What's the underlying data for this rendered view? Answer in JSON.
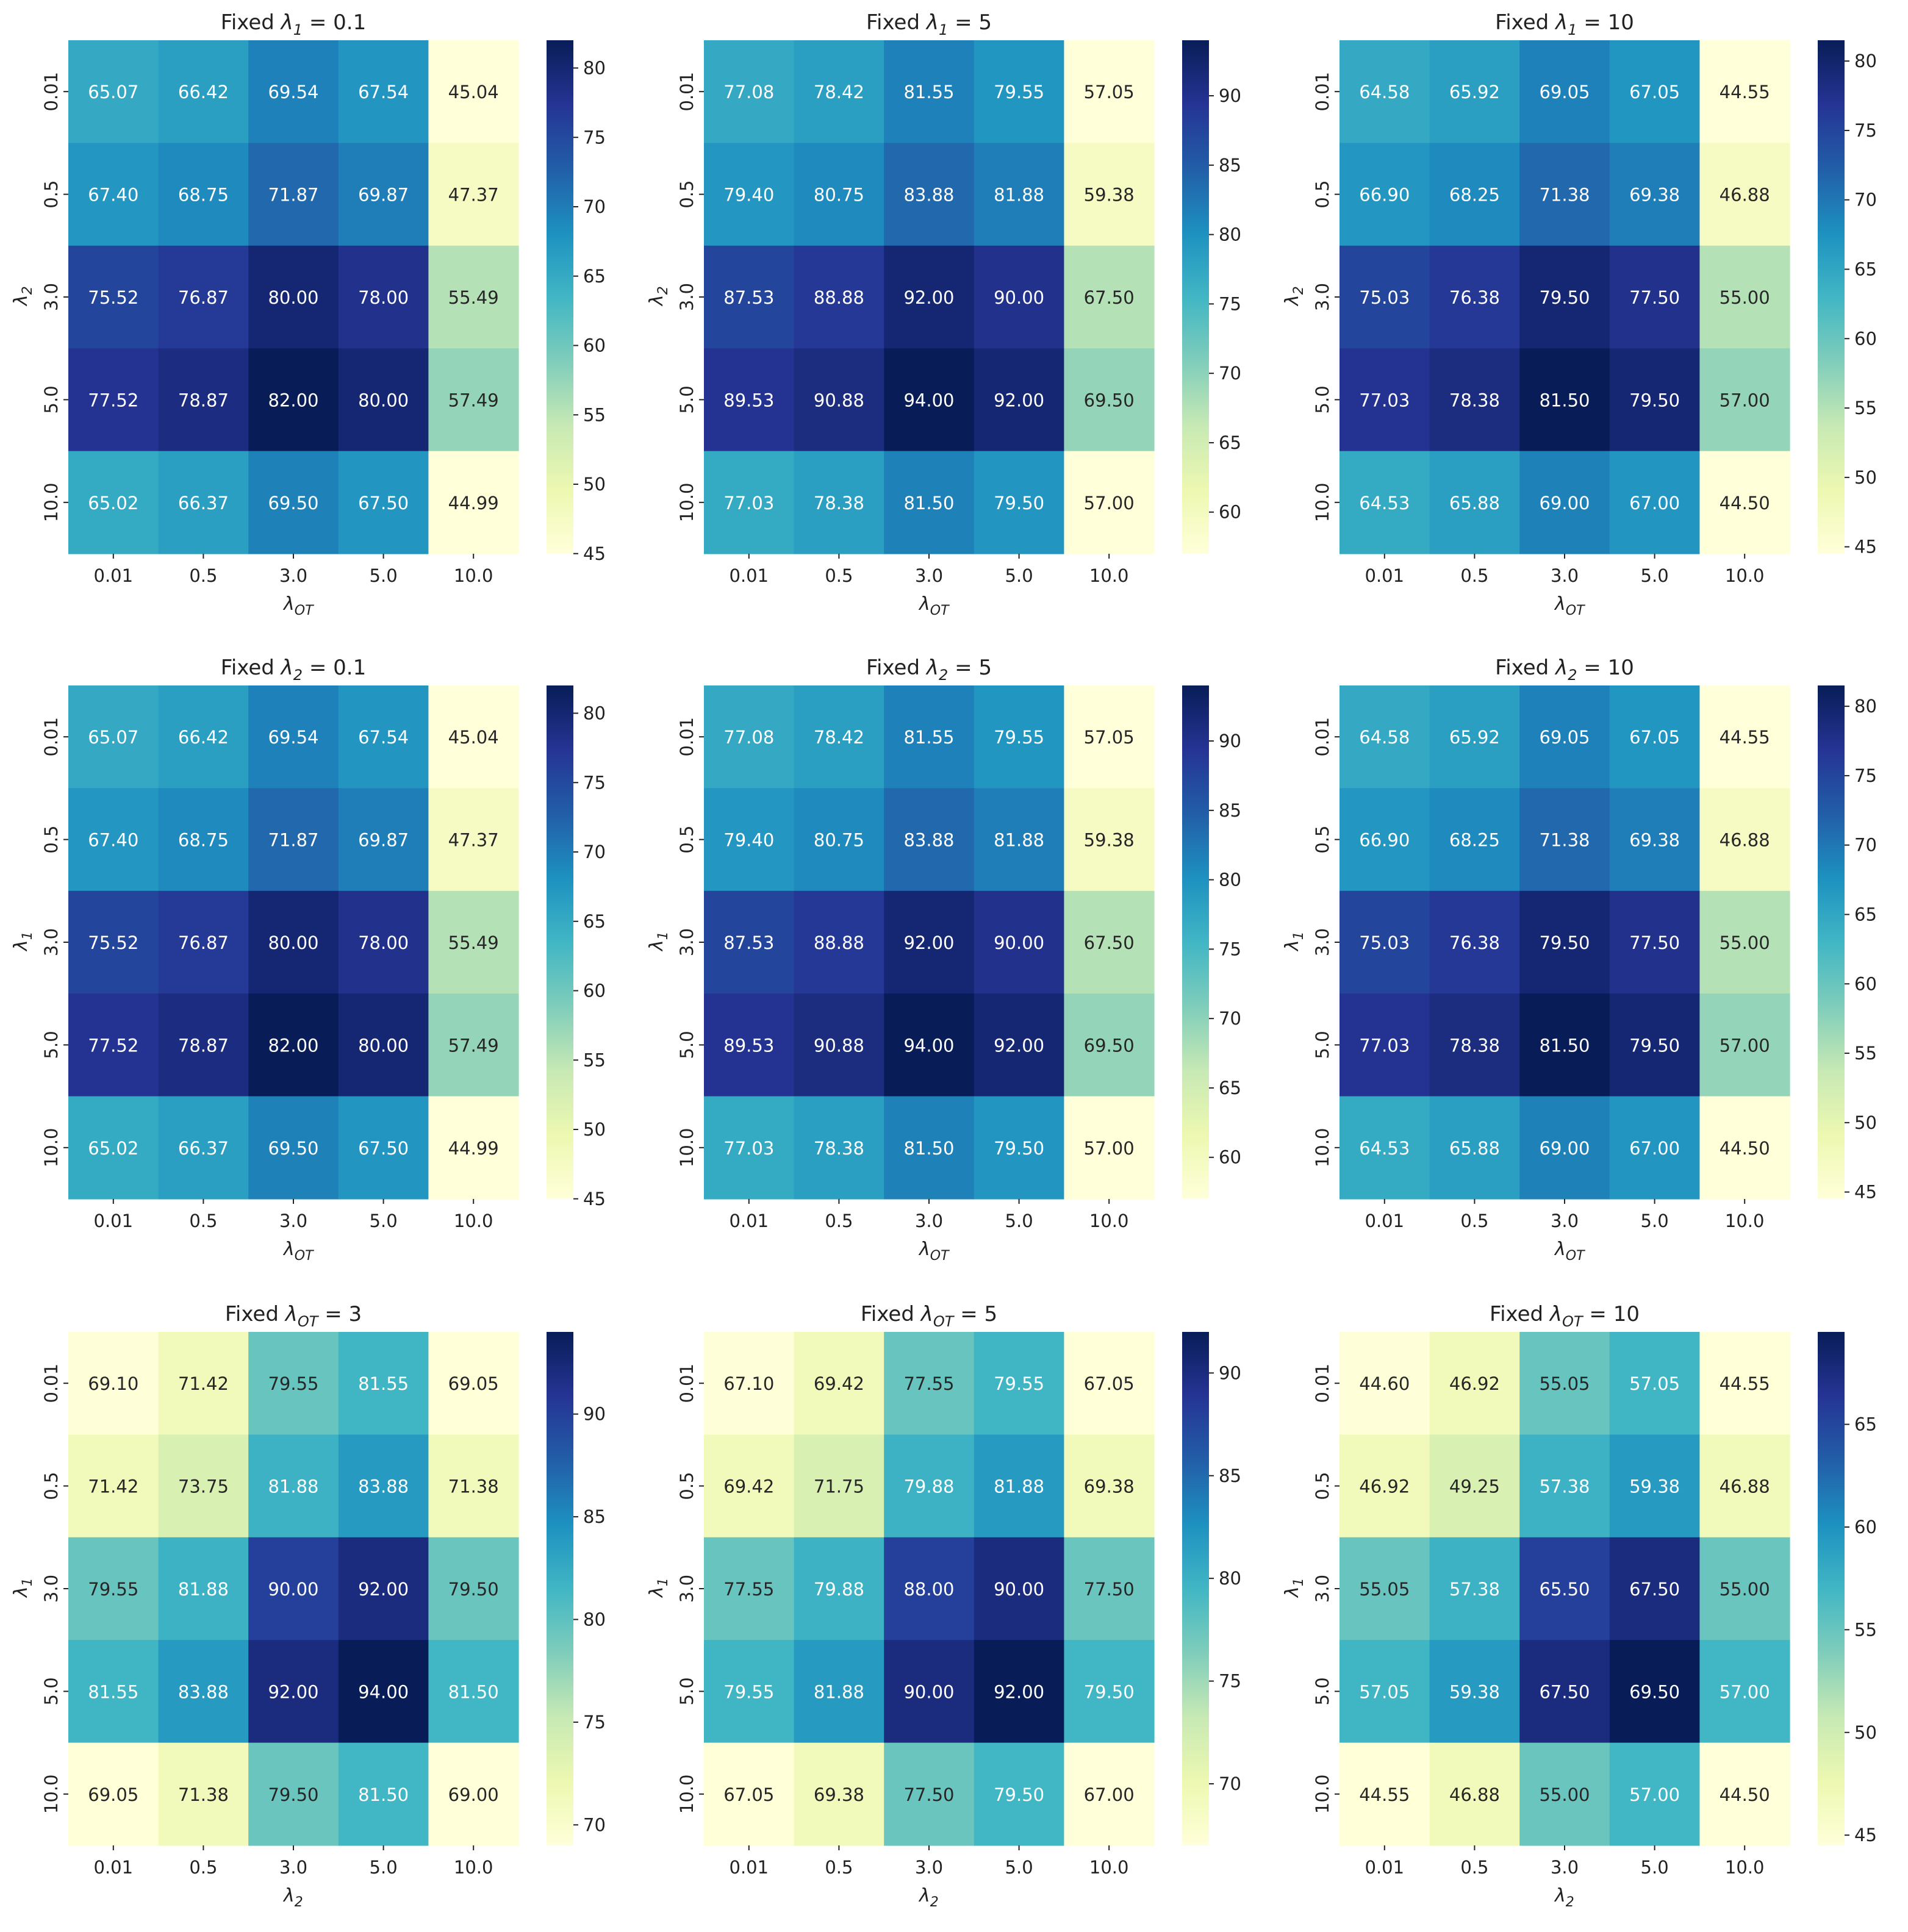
{
  "chart_data": [
    {
      "type": "heatmap",
      "title_prefix": "Fixed ",
      "title_sym": "λ",
      "title_sub": "1",
      "title_value": " = 0.1",
      "xlabel_sym": "λ",
      "xlabel_sub": "OT",
      "ylabel_sym": "λ",
      "ylabel_sub": "2",
      "x_categories": [
        "0.01",
        "0.5",
        "3.0",
        "5.0",
        "10.0"
      ],
      "y_categories": [
        "0.01",
        "0.5",
        "3.0",
        "5.0",
        "10.0"
      ],
      "values": [
        [
          65.07,
          66.42,
          69.54,
          67.54,
          45.04
        ],
        [
          67.4,
          68.75,
          71.87,
          69.87,
          47.37
        ],
        [
          75.52,
          76.87,
          80.0,
          78.0,
          55.49
        ],
        [
          77.52,
          78.87,
          82.0,
          80.0,
          57.49
        ],
        [
          65.02,
          66.37,
          69.5,
          67.5,
          44.99
        ]
      ],
      "colorbar": {
        "vmin": 44.99,
        "vmax": 82.0,
        "ticks": [
          "45",
          "50",
          "55",
          "60",
          "65",
          "70",
          "75",
          "80"
        ]
      }
    },
    {
      "type": "heatmap",
      "title_prefix": "Fixed ",
      "title_sym": "λ",
      "title_sub": "1",
      "title_value": " = 5",
      "xlabel_sym": "λ",
      "xlabel_sub": "OT",
      "ylabel_sym": "λ",
      "ylabel_sub": "2",
      "x_categories": [
        "0.01",
        "0.5",
        "3.0",
        "5.0",
        "10.0"
      ],
      "y_categories": [
        "0.01",
        "0.5",
        "3.0",
        "5.0",
        "10.0"
      ],
      "values": [
        [
          77.08,
          78.42,
          81.55,
          79.55,
          57.05
        ],
        [
          79.4,
          80.75,
          83.88,
          81.88,
          59.38
        ],
        [
          87.53,
          88.88,
          92.0,
          90.0,
          67.5
        ],
        [
          89.53,
          90.88,
          94.0,
          92.0,
          69.5
        ],
        [
          77.03,
          78.38,
          81.5,
          79.5,
          57.0
        ]
      ],
      "colorbar": {
        "vmin": 57.0,
        "vmax": 94.0,
        "ticks": [
          "60",
          "65",
          "70",
          "75",
          "80",
          "85",
          "90"
        ]
      }
    },
    {
      "type": "heatmap",
      "title_prefix": "Fixed ",
      "title_sym": "λ",
      "title_sub": "1",
      "title_value": " = 10",
      "xlabel_sym": "λ",
      "xlabel_sub": "OT",
      "ylabel_sym": "λ",
      "ylabel_sub": "2",
      "x_categories": [
        "0.01",
        "0.5",
        "3.0",
        "5.0",
        "10.0"
      ],
      "y_categories": [
        "0.01",
        "0.5",
        "3.0",
        "5.0",
        "10.0"
      ],
      "values": [
        [
          64.58,
          65.92,
          69.05,
          67.05,
          44.55
        ],
        [
          66.9,
          68.25,
          71.38,
          69.38,
          46.88
        ],
        [
          75.03,
          76.38,
          79.5,
          77.5,
          55.0
        ],
        [
          77.03,
          78.38,
          81.5,
          79.5,
          57.0
        ],
        [
          64.53,
          65.88,
          69.0,
          67.0,
          44.5
        ]
      ],
      "colorbar": {
        "vmin": 44.5,
        "vmax": 81.5,
        "ticks": [
          "45",
          "50",
          "55",
          "60",
          "65",
          "70",
          "75",
          "80"
        ]
      }
    },
    {
      "type": "heatmap",
      "title_prefix": "Fixed ",
      "title_sym": "λ",
      "title_sub": "2",
      "title_value": " = 0.1",
      "xlabel_sym": "λ",
      "xlabel_sub": "OT",
      "ylabel_sym": "λ",
      "ylabel_sub": "1",
      "x_categories": [
        "0.01",
        "0.5",
        "3.0",
        "5.0",
        "10.0"
      ],
      "y_categories": [
        "0.01",
        "0.5",
        "3.0",
        "5.0",
        "10.0"
      ],
      "values": [
        [
          65.07,
          66.42,
          69.54,
          67.54,
          45.04
        ],
        [
          67.4,
          68.75,
          71.87,
          69.87,
          47.37
        ],
        [
          75.52,
          76.87,
          80.0,
          78.0,
          55.49
        ],
        [
          77.52,
          78.87,
          82.0,
          80.0,
          57.49
        ],
        [
          65.02,
          66.37,
          69.5,
          67.5,
          44.99
        ]
      ],
      "colorbar": {
        "vmin": 44.99,
        "vmax": 82.0,
        "ticks": [
          "45",
          "50",
          "55",
          "60",
          "65",
          "70",
          "75",
          "80"
        ]
      }
    },
    {
      "type": "heatmap",
      "title_prefix": "Fixed ",
      "title_sym": "λ",
      "title_sub": "2",
      "title_value": " = 5",
      "xlabel_sym": "λ",
      "xlabel_sub": "OT",
      "ylabel_sym": "λ",
      "ylabel_sub": "1",
      "x_categories": [
        "0.01",
        "0.5",
        "3.0",
        "5.0",
        "10.0"
      ],
      "y_categories": [
        "0.01",
        "0.5",
        "3.0",
        "5.0",
        "10.0"
      ],
      "values": [
        [
          77.08,
          78.42,
          81.55,
          79.55,
          57.05
        ],
        [
          79.4,
          80.75,
          83.88,
          81.88,
          59.38
        ],
        [
          87.53,
          88.88,
          92.0,
          90.0,
          67.5
        ],
        [
          89.53,
          90.88,
          94.0,
          92.0,
          69.5
        ],
        [
          77.03,
          78.38,
          81.5,
          79.5,
          57.0
        ]
      ],
      "colorbar": {
        "vmin": 57.0,
        "vmax": 94.0,
        "ticks": [
          "60",
          "65",
          "70",
          "75",
          "80",
          "85",
          "90"
        ]
      }
    },
    {
      "type": "heatmap",
      "title_prefix": "Fixed ",
      "title_sym": "λ",
      "title_sub": "2",
      "title_value": " = 10",
      "xlabel_sym": "λ",
      "xlabel_sub": "OT",
      "ylabel_sym": "λ",
      "ylabel_sub": "1",
      "x_categories": [
        "0.01",
        "0.5",
        "3.0",
        "5.0",
        "10.0"
      ],
      "y_categories": [
        "0.01",
        "0.5",
        "3.0",
        "5.0",
        "10.0"
      ],
      "values": [
        [
          64.58,
          65.92,
          69.05,
          67.05,
          44.55
        ],
        [
          66.9,
          68.25,
          71.38,
          69.38,
          46.88
        ],
        [
          75.03,
          76.38,
          79.5,
          77.5,
          55.0
        ],
        [
          77.03,
          78.38,
          81.5,
          79.5,
          57.0
        ],
        [
          64.53,
          65.88,
          69.0,
          67.0,
          44.5
        ]
      ],
      "colorbar": {
        "vmin": 44.5,
        "vmax": 81.5,
        "ticks": [
          "45",
          "50",
          "55",
          "60",
          "65",
          "70",
          "75",
          "80"
        ]
      }
    },
    {
      "type": "heatmap",
      "title_prefix": "Fixed ",
      "title_sym": "λ",
      "title_sub": "OT",
      "title_value": " = 3",
      "xlabel_sym": "λ",
      "xlabel_sub": "2",
      "ylabel_sym": "λ",
      "ylabel_sub": "1",
      "x_categories": [
        "0.01",
        "0.5",
        "3.0",
        "5.0",
        "10.0"
      ],
      "y_categories": [
        "0.01",
        "0.5",
        "3.0",
        "5.0",
        "10.0"
      ],
      "values": [
        [
          69.1,
          71.42,
          79.55,
          81.55,
          69.05
        ],
        [
          71.42,
          73.75,
          81.88,
          83.88,
          71.38
        ],
        [
          79.55,
          81.88,
          90.0,
          92.0,
          79.5
        ],
        [
          81.55,
          83.88,
          92.0,
          94.0,
          81.5
        ],
        [
          69.05,
          71.38,
          79.5,
          81.5,
          69.0
        ]
      ],
      "colorbar": {
        "vmin": 69.0,
        "vmax": 94.0,
        "ticks": [
          "70",
          "75",
          "80",
          "85",
          "90"
        ]
      }
    },
    {
      "type": "heatmap",
      "title_prefix": "Fixed ",
      "title_sym": "λ",
      "title_sub": "OT",
      "title_value": " = 5",
      "xlabel_sym": "λ",
      "xlabel_sub": "2",
      "ylabel_sym": "λ",
      "ylabel_sub": "1",
      "x_categories": [
        "0.01",
        "0.5",
        "3.0",
        "5.0",
        "10.0"
      ],
      "y_categories": [
        "0.01",
        "0.5",
        "3.0",
        "5.0",
        "10.0"
      ],
      "values": [
        [
          67.1,
          69.42,
          77.55,
          79.55,
          67.05
        ],
        [
          69.42,
          71.75,
          79.88,
          81.88,
          69.38
        ],
        [
          77.55,
          79.88,
          88.0,
          90.0,
          77.5
        ],
        [
          79.55,
          81.88,
          90.0,
          92.0,
          79.5
        ],
        [
          67.05,
          69.38,
          77.5,
          79.5,
          67.0
        ]
      ],
      "colorbar": {
        "vmin": 67.0,
        "vmax": 92.0,
        "ticks": [
          "70",
          "75",
          "80",
          "85",
          "90"
        ]
      }
    },
    {
      "type": "heatmap",
      "title_prefix": "Fixed ",
      "title_sym": "λ",
      "title_sub": "OT",
      "title_value": " = 10",
      "xlabel_sym": "λ",
      "xlabel_sub": "2",
      "ylabel_sym": "λ",
      "ylabel_sub": "1",
      "x_categories": [
        "0.01",
        "0.5",
        "3.0",
        "5.0",
        "10.0"
      ],
      "y_categories": [
        "0.01",
        "0.5",
        "3.0",
        "5.0",
        "10.0"
      ],
      "values": [
        [
          44.6,
          46.92,
          55.05,
          57.05,
          44.55
        ],
        [
          46.92,
          49.25,
          57.38,
          59.38,
          46.88
        ],
        [
          55.05,
          57.38,
          65.5,
          67.5,
          55.0
        ],
        [
          57.05,
          59.38,
          67.5,
          69.5,
          57.0
        ],
        [
          44.55,
          46.88,
          55.0,
          57.0,
          44.5
        ]
      ],
      "colorbar": {
        "vmin": 44.5,
        "vmax": 69.5,
        "ticks": [
          "45",
          "50",
          "55",
          "60",
          "65"
        ]
      }
    }
  ]
}
